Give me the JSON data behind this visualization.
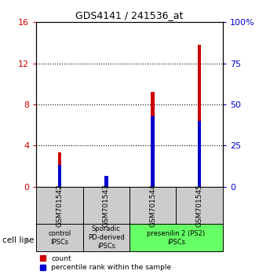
{
  "title": "GDS4141 / 241536_at",
  "samples": [
    "GSM701542",
    "GSM701543",
    "GSM701544",
    "GSM701545"
  ],
  "count_values": [
    3.3,
    0.25,
    9.2,
    13.8
  ],
  "percentile_values": [
    13.0,
    6.5,
    43.0,
    40.0
  ],
  "ylim_left": [
    0,
    16
  ],
  "ylim_right": [
    0,
    100
  ],
  "yticks_left": [
    0,
    4,
    8,
    12,
    16
  ],
  "ytick_labels_left": [
    "0",
    "4",
    "8",
    "12",
    "16"
  ],
  "yticks_right": [
    0,
    25,
    50,
    75,
    100
  ],
  "ytick_labels_right": [
    "0",
    "25",
    "50",
    "75",
    "100%"
  ],
  "bar_color_count": "#cc0000",
  "bar_color_pct": "#0000cc",
  "bar_width": 0.08,
  "group_configs": [
    {
      "cols": [
        0
      ],
      "label": "control\nIPSCs",
      "color": "#cccccc"
    },
    {
      "cols": [
        1
      ],
      "label": "Sporadic\nPD-derived\niPSCs",
      "color": "#cccccc"
    },
    {
      "cols": [
        2,
        3
      ],
      "label": "presenilin 2 (PS2)\niPSCs",
      "color": "#66ff66"
    }
  ],
  "cell_line_label": "cell line",
  "legend_count_label": "count",
  "legend_pct_label": "percentile rank within the sample",
  "tick_color_left": "#cc0000",
  "tick_color_right": "#0000cc",
  "sample_box_color": "#cccccc",
  "background_color": "#ffffff"
}
